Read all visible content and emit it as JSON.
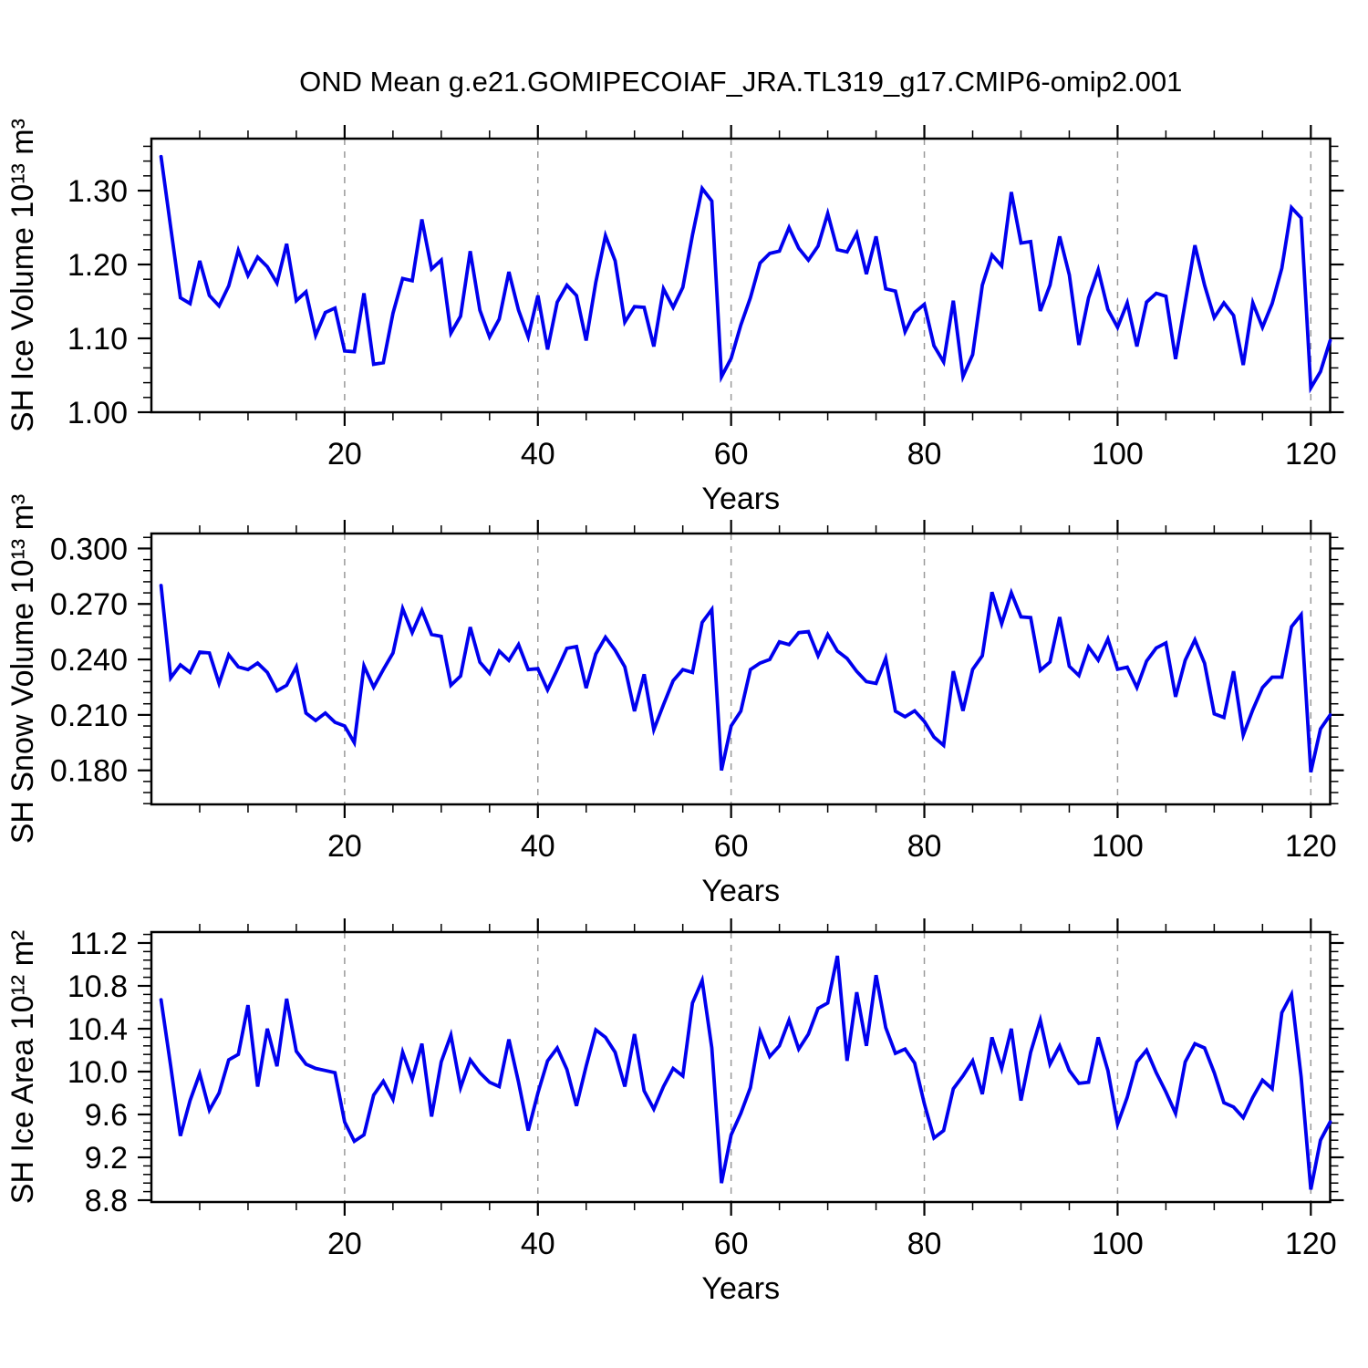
{
  "title": "OND Mean g.e21.GOMIPECOIAF_JRA.TL319_g17.CMIP6-omip2.001",
  "line_color": "#0000EE",
  "grid_color": "#999999",
  "axis_color": "#000000",
  "chart_data": [
    {
      "type": "line",
      "title": "OND Mean g.e21.GOMIPECOIAF_JRA.TL319_g17.CMIP6-omip2.001",
      "ylabel": "SH Ice Volume 10¹³ m³",
      "xlabel": "Years",
      "xlim": [
        0,
        122
      ],
      "ylim": [
        1.0,
        1.3704
      ],
      "yticks": [
        1.0,
        1.1,
        1.2,
        1.3
      ],
      "ytick_labels": [
        "1.00",
        "1.10",
        "1.20",
        "1.30"
      ],
      "y_minor_step": 0.02,
      "xticks": [
        20,
        40,
        60,
        80,
        100,
        120
      ],
      "x_minor_step": 5,
      "grid": "vertical-dashed",
      "legend": "none",
      "x": [
        1,
        2,
        3,
        4,
        5,
        6,
        7,
        8,
        9,
        10,
        11,
        12,
        13,
        14,
        15,
        16,
        17,
        18,
        19,
        20,
        21,
        22,
        23,
        24,
        25,
        26,
        27,
        28,
        29,
        30,
        31,
        32,
        33,
        34,
        35,
        36,
        37,
        38,
        39,
        40,
        41,
        42,
        43,
        44,
        45,
        46,
        47,
        48,
        49,
        50,
        51,
        52,
        53,
        54,
        55,
        56,
        57,
        58,
        59,
        60,
        61,
        62,
        63,
        64,
        65,
        66,
        67,
        68,
        69,
        70,
        71,
        72,
        73,
        74,
        75,
        76,
        77,
        78,
        79,
        80,
        81,
        82,
        83,
        84,
        85,
        86,
        87,
        88,
        89,
        90,
        91,
        92,
        93,
        94,
        95,
        96,
        97,
        98,
        99,
        100,
        101,
        102,
        103,
        104,
        105,
        106,
        107,
        108,
        109,
        110,
        111,
        112,
        113,
        114,
        115,
        116,
        117,
        118,
        119,
        120,
        121,
        122
      ],
      "values": [
        1.346,
        1.25,
        1.155,
        1.147,
        1.205,
        1.158,
        1.144,
        1.171,
        1.219,
        1.185,
        1.21,
        1.197,
        1.175,
        1.228,
        1.151,
        1.163,
        1.104,
        1.135,
        1.141,
        1.083,
        1.082,
        1.161,
        1.065,
        1.067,
        1.134,
        1.181,
        1.178,
        1.261,
        1.194,
        1.206,
        1.107,
        1.13,
        1.218,
        1.138,
        1.102,
        1.126,
        1.19,
        1.138,
        1.102,
        1.158,
        1.085,
        1.149,
        1.172,
        1.158,
        1.097,
        1.176,
        1.239,
        1.205,
        1.122,
        1.143,
        1.142,
        1.089,
        1.167,
        1.142,
        1.169,
        1.24,
        1.303,
        1.286,
        1.048,
        1.073,
        1.118,
        1.155,
        1.202,
        1.215,
        1.218,
        1.25,
        1.222,
        1.206,
        1.225,
        1.269,
        1.22,
        1.217,
        1.242,
        1.187,
        1.238,
        1.167,
        1.164,
        1.109,
        1.135,
        1.146,
        1.09,
        1.068,
        1.151,
        1.048,
        1.078,
        1.172,
        1.213,
        1.198,
        1.298,
        1.229,
        1.231,
        1.137,
        1.172,
        1.238,
        1.186,
        1.091,
        1.155,
        1.193,
        1.139,
        1.115,
        1.148,
        1.089,
        1.149,
        1.161,
        1.157,
        1.072,
        1.149,
        1.226,
        1.172,
        1.128,
        1.148,
        1.131,
        1.064,
        1.148,
        1.115,
        1.147,
        1.195,
        1.277,
        1.263,
        1.033,
        1.055,
        1.097
      ]
    },
    {
      "type": "line",
      "title": "",
      "ylabel": "SH Snow Volume 10¹³ m³",
      "xlabel": "Years",
      "xlim": [
        0,
        122
      ],
      "ylim": [
        0.1616,
        0.3081
      ],
      "yticks": [
        0.18,
        0.21,
        0.24,
        0.27,
        0.3
      ],
      "ytick_labels": [
        "0.180",
        "0.210",
        "0.240",
        "0.270",
        "0.300"
      ],
      "y_minor_step": 0.006,
      "xticks": [
        20,
        40,
        60,
        80,
        100,
        120
      ],
      "x_minor_step": 5,
      "grid": "vertical-dashed",
      "legend": "none",
      "x": [
        1,
        2,
        3,
        4,
        5,
        6,
        7,
        8,
        9,
        10,
        11,
        12,
        13,
        14,
        15,
        16,
        17,
        18,
        19,
        20,
        21,
        22,
        23,
        24,
        25,
        26,
        27,
        28,
        29,
        30,
        31,
        32,
        33,
        34,
        35,
        36,
        37,
        38,
        39,
        40,
        41,
        42,
        43,
        44,
        45,
        46,
        47,
        48,
        49,
        50,
        51,
        52,
        53,
        54,
        55,
        56,
        57,
        58,
        59,
        60,
        61,
        62,
        63,
        64,
        65,
        66,
        67,
        68,
        69,
        70,
        71,
        72,
        73,
        74,
        75,
        76,
        77,
        78,
        79,
        80,
        81,
        82,
        83,
        84,
        85,
        86,
        87,
        88,
        89,
        90,
        91,
        92,
        93,
        94,
        95,
        96,
        97,
        98,
        99,
        100,
        101,
        102,
        103,
        104,
        105,
        106,
        107,
        108,
        109,
        110,
        111,
        112,
        113,
        114,
        115,
        116,
        117,
        118,
        119,
        120,
        121,
        122
      ],
      "values": [
        0.28,
        0.23,
        0.237,
        0.233,
        0.244,
        0.2435,
        0.227,
        0.2425,
        0.236,
        0.2345,
        0.238,
        0.233,
        0.223,
        0.226,
        0.236,
        0.211,
        0.207,
        0.211,
        0.206,
        0.204,
        0.195,
        0.2365,
        0.225,
        0.2345,
        0.2435,
        0.2675,
        0.2545,
        0.2665,
        0.2535,
        0.2525,
        0.226,
        0.231,
        0.2575,
        0.2385,
        0.2325,
        0.2445,
        0.2395,
        0.248,
        0.2345,
        0.235,
        0.2235,
        0.2345,
        0.246,
        0.247,
        0.2245,
        0.243,
        0.252,
        0.245,
        0.236,
        0.212,
        0.232,
        0.202,
        0.2155,
        0.2285,
        0.2345,
        0.233,
        0.26,
        0.267,
        0.18,
        0.204,
        0.212,
        0.2345,
        0.238,
        0.24,
        0.2495,
        0.248,
        0.2545,
        0.255,
        0.242,
        0.2535,
        0.2445,
        0.2405,
        0.2335,
        0.228,
        0.227,
        0.2405,
        0.212,
        0.209,
        0.2122,
        0.2065,
        0.198,
        0.1935,
        0.2336,
        0.2122,
        0.2346,
        0.242,
        0.2764,
        0.2593,
        0.2761,
        0.263,
        0.2626,
        0.2341,
        0.2386,
        0.2629,
        0.2363,
        0.2313,
        0.2468,
        0.2396,
        0.2511,
        0.2347,
        0.2358,
        0.2248,
        0.2391,
        0.2462,
        0.2489,
        0.2198,
        0.2396,
        0.2506,
        0.2379,
        0.2106,
        0.2086,
        0.2336,
        0.1991,
        0.2128,
        0.2248,
        0.2304,
        0.2304,
        0.2577,
        0.2642,
        0.179,
        0.2024,
        0.21
      ]
    },
    {
      "type": "line",
      "title": "",
      "ylabel": "SH Ice Area 10¹² m²",
      "xlabel": "Years",
      "xlim": [
        0,
        122
      ],
      "ylim": [
        8.783,
        11.302
      ],
      "yticks": [
        8.8,
        9.2,
        9.6,
        10.0,
        10.4,
        10.8,
        11.2
      ],
      "ytick_labels": [
        "8.8",
        "9.2",
        "9.6",
        "10.0",
        "10.4",
        "10.8",
        "11.2"
      ],
      "y_minor_step": 0.08,
      "xticks": [
        20,
        40,
        60,
        80,
        100,
        120
      ],
      "x_minor_step": 5,
      "grid": "vertical-dashed",
      "legend": "none",
      "x": [
        1,
        2,
        3,
        4,
        5,
        6,
        7,
        8,
        9,
        10,
        11,
        12,
        13,
        14,
        15,
        16,
        17,
        18,
        19,
        20,
        21,
        22,
        23,
        24,
        25,
        26,
        27,
        28,
        29,
        30,
        31,
        32,
        33,
        34,
        35,
        36,
        37,
        38,
        39,
        40,
        41,
        42,
        43,
        44,
        45,
        46,
        47,
        48,
        49,
        50,
        51,
        52,
        53,
        54,
        55,
        56,
        57,
        58,
        59,
        60,
        61,
        62,
        63,
        64,
        65,
        66,
        67,
        68,
        69,
        70,
        71,
        72,
        73,
        74,
        75,
        76,
        77,
        78,
        79,
        80,
        81,
        82,
        83,
        84,
        85,
        86,
        87,
        88,
        89,
        90,
        91,
        92,
        93,
        94,
        95,
        96,
        97,
        98,
        99,
        100,
        101,
        102,
        103,
        104,
        105,
        106,
        107,
        108,
        109,
        110,
        111,
        112,
        113,
        114,
        115,
        116,
        117,
        118,
        119,
        120,
        121,
        122
      ],
      "values": [
        10.67,
        10.05,
        9.4,
        9.73,
        9.98,
        9.64,
        9.8,
        10.11,
        10.16,
        10.62,
        9.86,
        10.4,
        10.05,
        10.68,
        10.19,
        10.07,
        10.03,
        10.01,
        9.99,
        9.53,
        9.35,
        9.41,
        9.78,
        9.91,
        9.74,
        10.18,
        9.93,
        10.26,
        9.58,
        10.09,
        10.34,
        9.85,
        10.11,
        9.99,
        9.9,
        9.86,
        10.3,
        9.9,
        9.45,
        9.8,
        10.1,
        10.22,
        10.02,
        9.68,
        10.05,
        10.39,
        10.32,
        10.18,
        9.86,
        10.35,
        9.82,
        9.65,
        9.86,
        10.03,
        9.96,
        10.64,
        10.85,
        10.22,
        8.96,
        9.41,
        9.61,
        9.85,
        10.37,
        10.14,
        10.24,
        10.48,
        10.21,
        10.35,
        10.59,
        10.64,
        11.08,
        10.1,
        10.74,
        10.24,
        10.9,
        10.41,
        10.17,
        10.21,
        10.08,
        9.7,
        9.38,
        9.45,
        9.84,
        9.96,
        10.1,
        9.79,
        10.32,
        10.03,
        10.4,
        9.73,
        10.18,
        10.48,
        10.07,
        10.24,
        10.01,
        9.89,
        9.9,
        10.32,
        10.01,
        9.51,
        9.76,
        10.09,
        10.2,
        9.99,
        9.81,
        9.61,
        10.09,
        10.26,
        10.22,
        9.99,
        9.71,
        9.67,
        9.57,
        9.76,
        9.92,
        9.84,
        10.55,
        10.72,
        9.95,
        8.9,
        9.36,
        9.53
      ]
    }
  ]
}
